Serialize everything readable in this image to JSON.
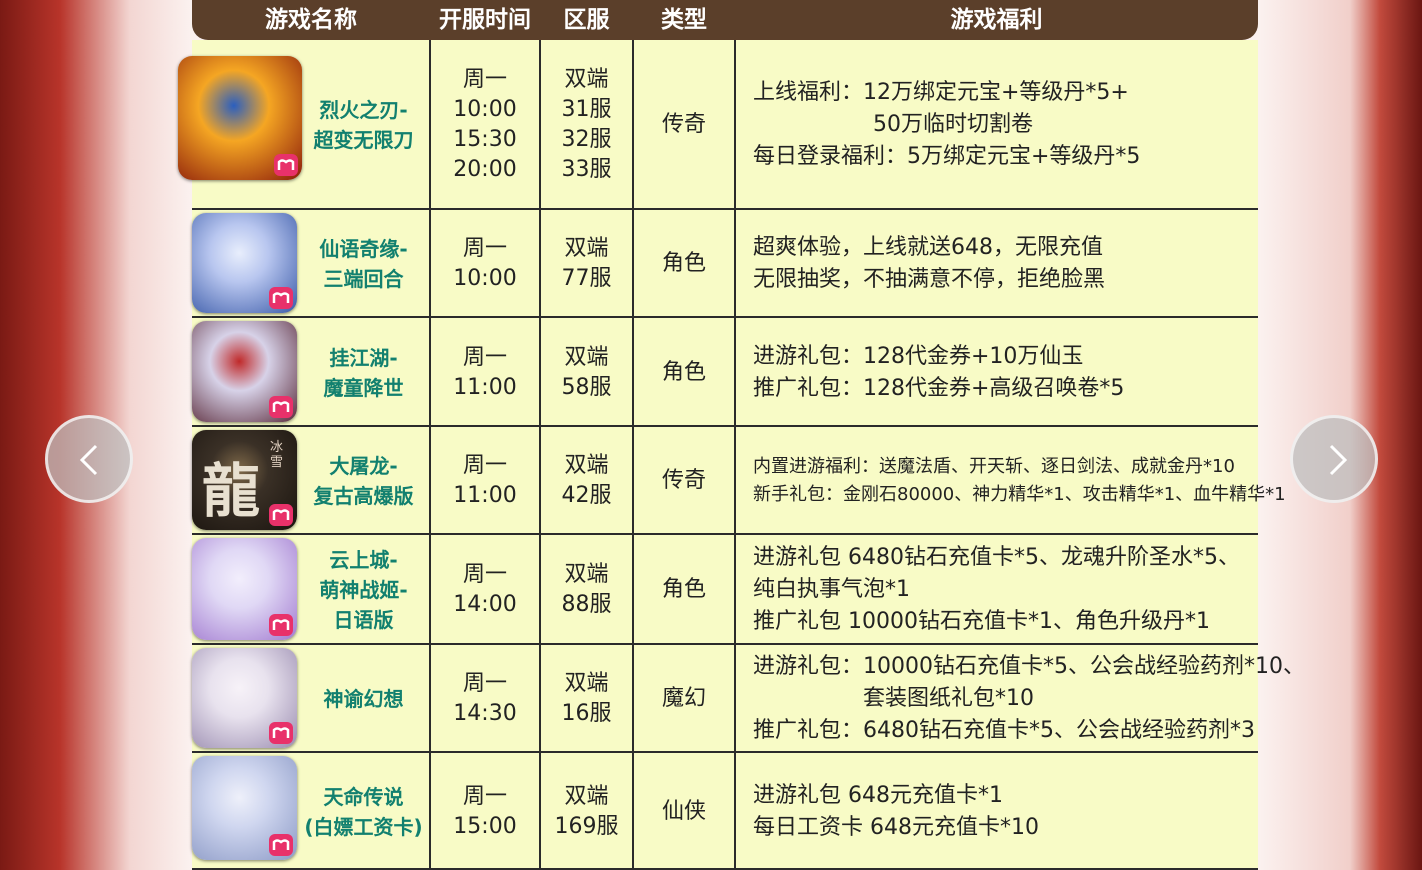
{
  "header": [
    "游戏名称",
    "开服时间",
    "区服",
    "类型",
    "游戏福利"
  ],
  "rows": [
    {
      "name": [
        "烈火之刃-",
        "超变无限刀"
      ],
      "time": [
        "周一",
        "10:00",
        "15:30",
        "20:00"
      ],
      "server": [
        "双端",
        "31服",
        "32服",
        "33服"
      ],
      "type": "传奇",
      "benefits": [
        "上线福利：12万绑定元宝+等级丹*5+",
        "50万临时切割卷",
        "每日登录福利：5万绑定元宝+等级丹*5"
      ]
    },
    {
      "name": [
        "仙语奇缘-",
        "三端回合"
      ],
      "time": [
        "周一",
        "10:00"
      ],
      "server": [
        "双端",
        "77服"
      ],
      "type": "角色",
      "benefits": [
        "超爽体验，上线就送648，无限充值",
        "无限抽奖，不抽满意不停，拒绝脸黑"
      ]
    },
    {
      "name": [
        "挂江湖-",
        "魔童降世"
      ],
      "time": [
        "周一",
        "11:00"
      ],
      "server": [
        "双端",
        "58服"
      ],
      "type": "角色",
      "benefits": [
        "进游礼包：128代金券+10万仙玉",
        "推广礼包：128代金券+高级召唤卷*5"
      ]
    },
    {
      "name": [
        "大屠龙-",
        "复古高爆版"
      ],
      "icon_text": [
        "龍",
        "冰雪"
      ],
      "time": [
        "周一",
        "11:00"
      ],
      "server": [
        "双端",
        "42服"
      ],
      "type": "传奇",
      "benefits": [
        "内置进游福利：送魔法盾、开天斩、逐日剑法、成就金丹*10",
        "新手礼包：金刚石80000、神力精华*1、攻击精华*1、血牛精华*1"
      ]
    },
    {
      "name": [
        "云上城-",
        "萌神战姬-",
        "日语版"
      ],
      "time": [
        "周一",
        "14:00"
      ],
      "server": [
        "双端",
        "88服"
      ],
      "type": "角色",
      "benefits": [
        "进游礼包  6480钻石充值卡*5、龙魂升阶圣水*5、",
        "纯白执事气泡*1",
        "推广礼包  10000钻石充值卡*1、角色升级丹*1"
      ]
    },
    {
      "name": [
        "神谕幻想"
      ],
      "time": [
        "周一",
        "14:30"
      ],
      "server": [
        "双端",
        "16服"
      ],
      "type": "魔幻",
      "benefits": [
        "进游礼包：10000钻石充值卡*5、公会战经验药剂*10、",
        "套装图纸礼包*10",
        "推广礼包：6480钻石充值卡*5、公会战经验药剂*3"
      ]
    },
    {
      "name": [
        "天命传说",
        "(白嫖工资卡)"
      ],
      "time": [
        "周一",
        "15:00"
      ],
      "server": [
        "双端",
        "169服"
      ],
      "type": "仙侠",
      "benefits": [
        "进游礼包 648元充值卡*1",
        "每日工资卡  648元充值卡*10"
      ]
    }
  ]
}
